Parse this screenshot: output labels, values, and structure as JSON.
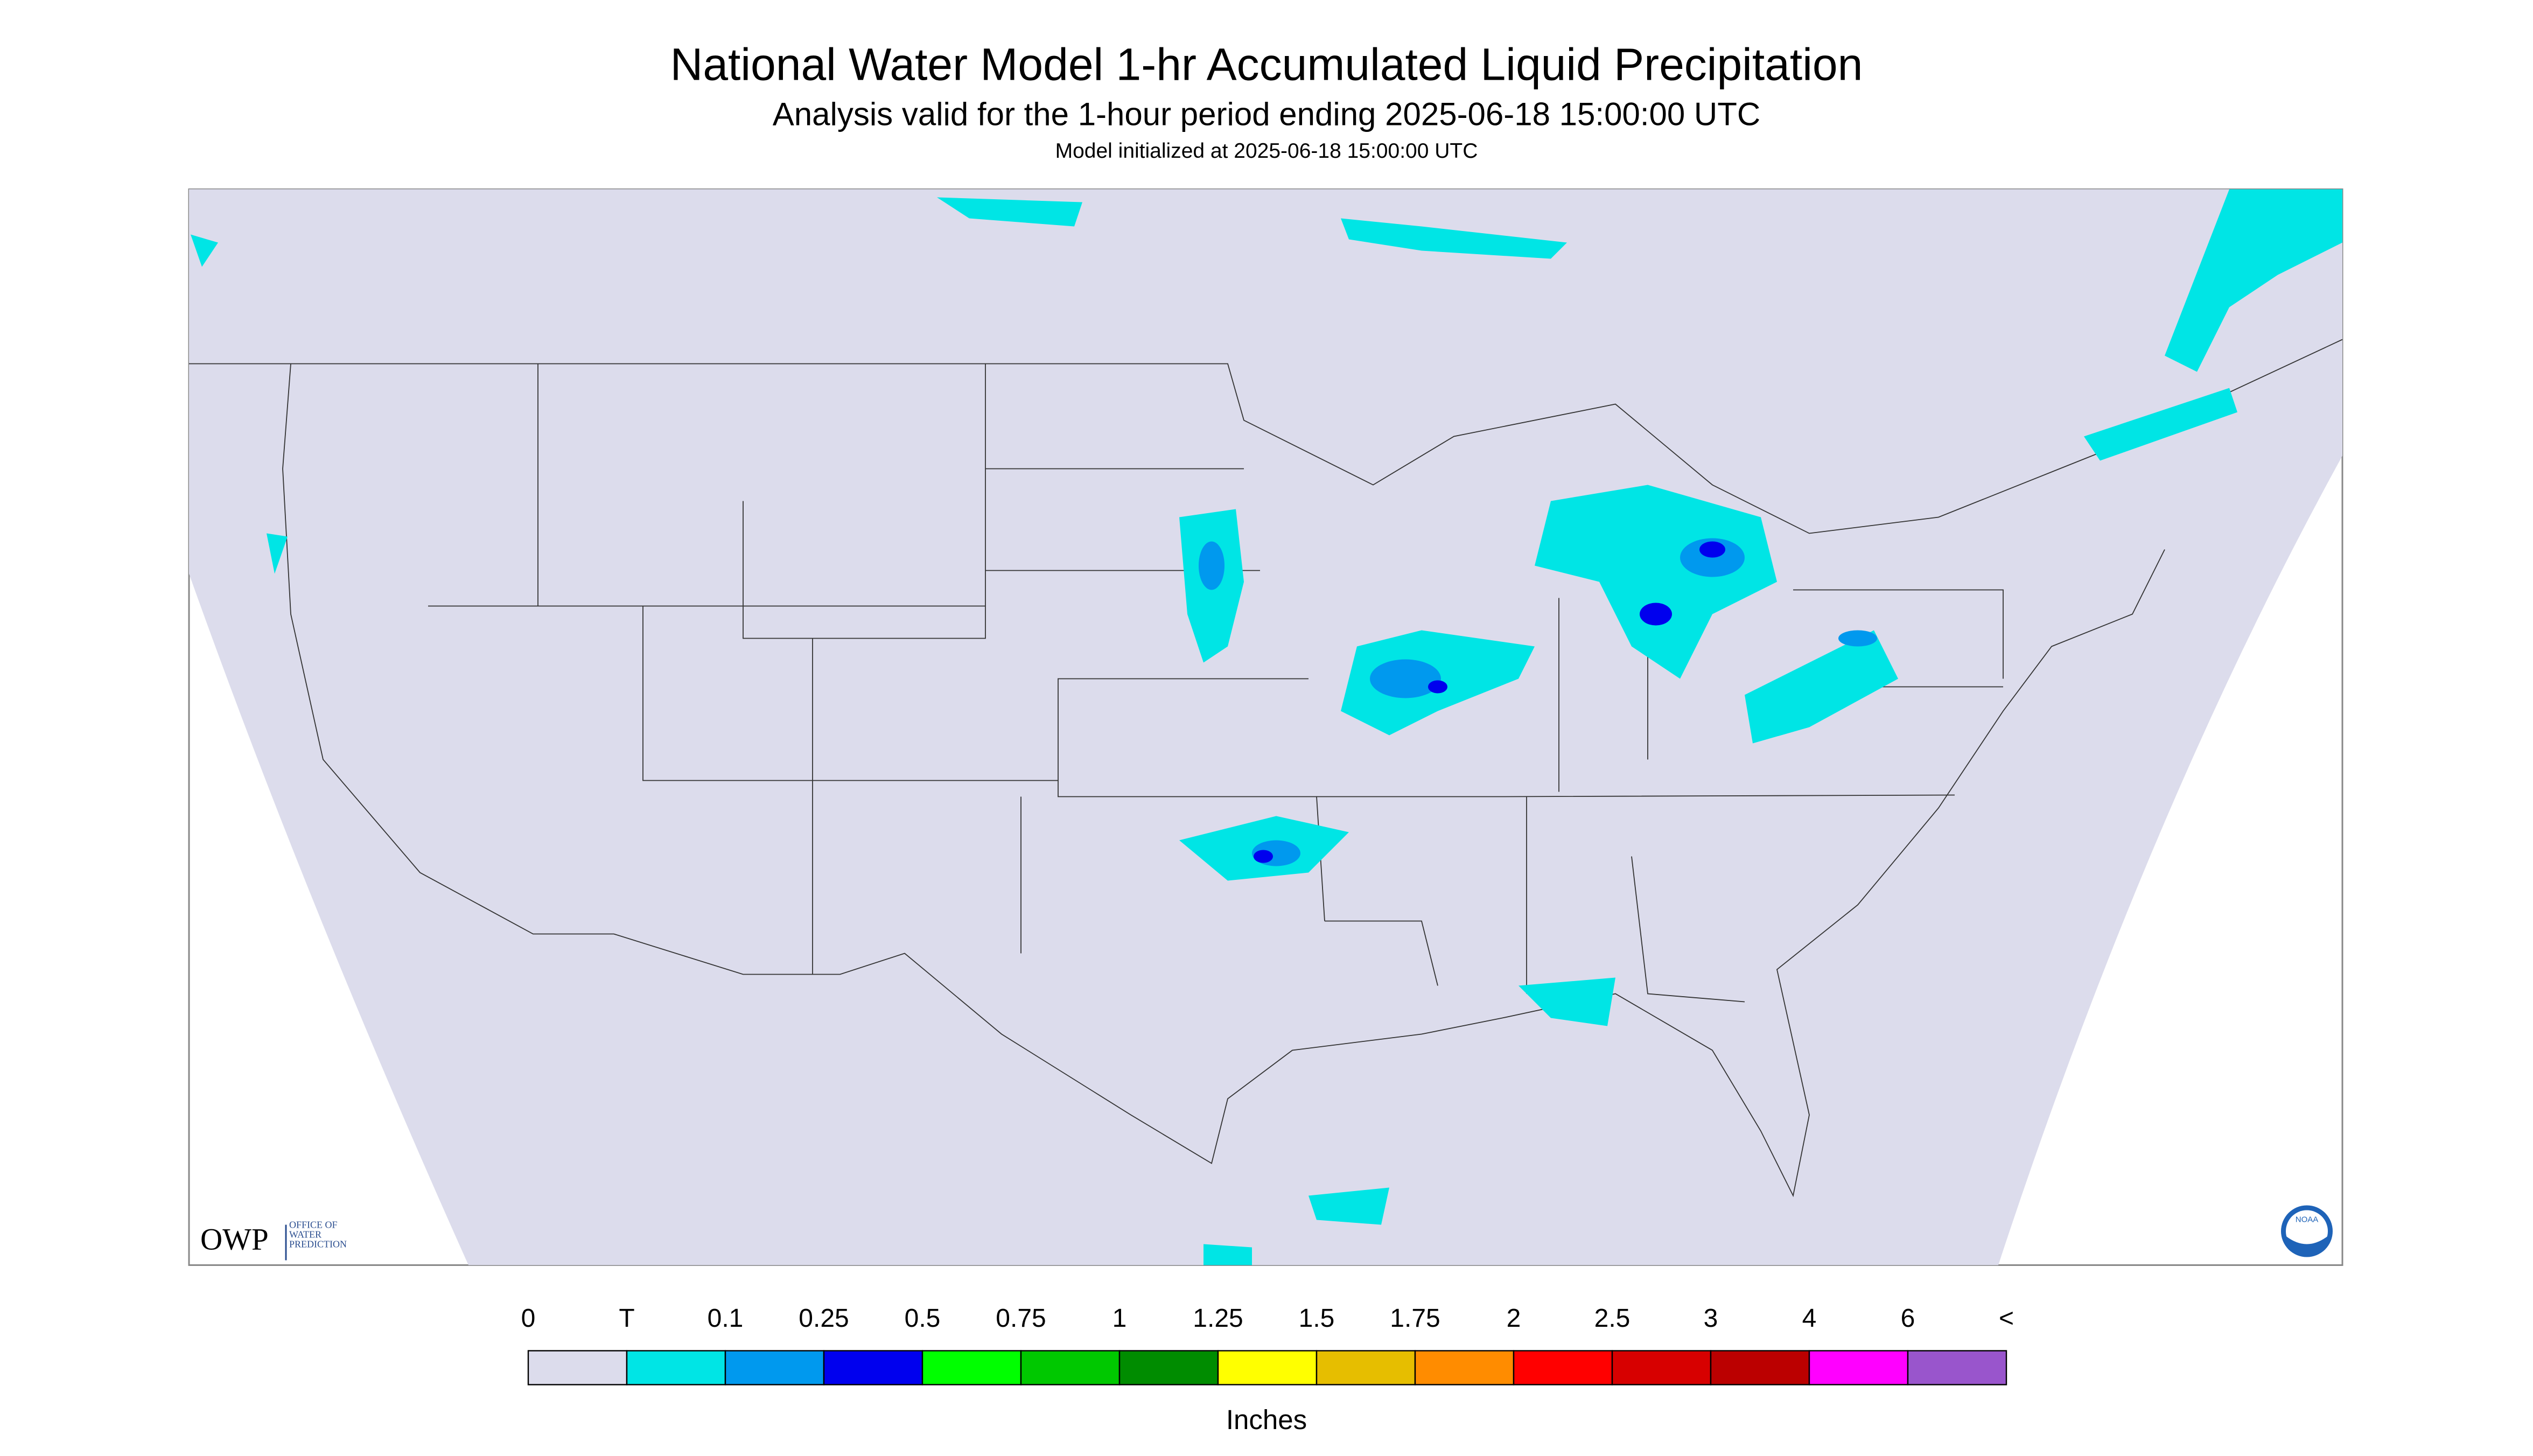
{
  "header": {
    "title": "National Water Model 1-hr Accumulated Liquid Precipitation",
    "subtitle": "Analysis valid for the 1-hour period ending 2025-06-18 15:00:00 UTC",
    "note": "Model initialized at 2025-06-18 15:00:00 UTC"
  },
  "logos": {
    "owp": "OWP",
    "owp_text": "OFFICE OF WATER PREDICTION",
    "noaa": "NOAA"
  },
  "legend": {
    "labels": [
      "0",
      "T",
      "0.1",
      "0.25",
      "0.5",
      "0.75",
      "1",
      "1.25",
      "1.5",
      "1.75",
      "2",
      "2.5",
      "3",
      "4",
      "6",
      "<"
    ],
    "colors": [
      "#dcdcec",
      "#00e5e5",
      "#0099ee",
      "#0000ee",
      "#00ff00",
      "#00c800",
      "#008c00",
      "#ffff00",
      "#e6be00",
      "#ff8c00",
      "#ff0000",
      "#d70000",
      "#bb0000",
      "#ff00ff",
      "#9955cc"
    ],
    "unit": "Inches"
  }
}
